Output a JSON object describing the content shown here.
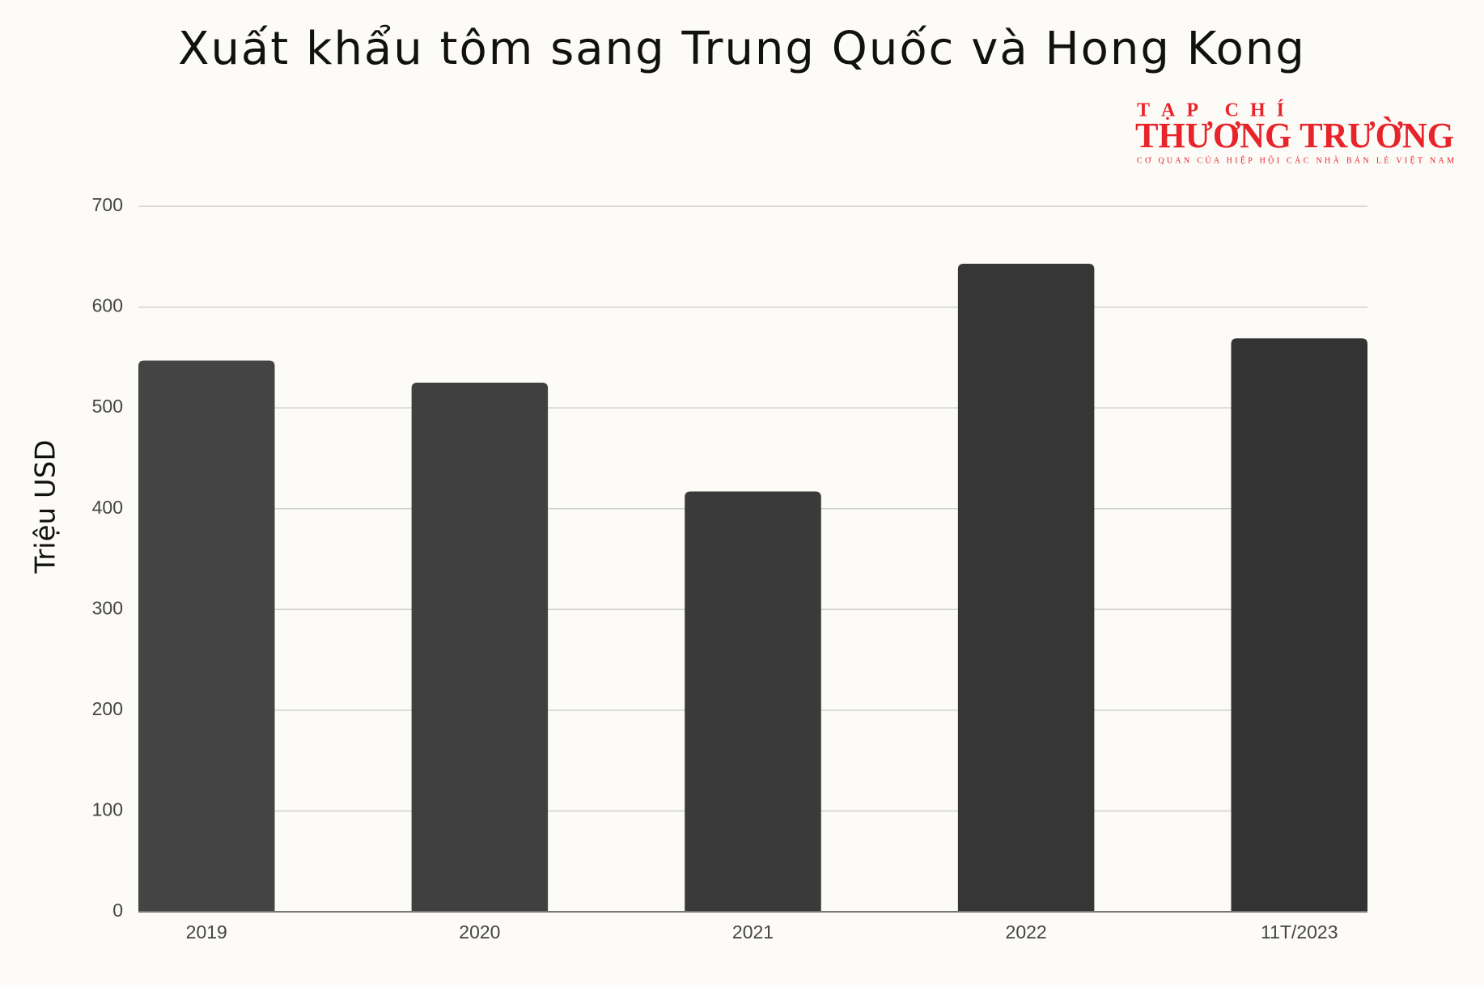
{
  "chart_data": {
    "type": "bar",
    "title": "Xuất khẩu tôm sang Trung Quốc và Hong Kong",
    "y_label": "Triệu USD",
    "categories": [
      "2019",
      "2020",
      "2021",
      "2022",
      "11T/2023"
    ],
    "values": [
      547,
      525,
      417,
      643,
      569
    ],
    "colors": [
      "#444444",
      "#404040",
      "#3a3a3a",
      "#363636",
      "#333333"
    ],
    "ylim": [
      0,
      700
    ],
    "yticks": [
      0,
      100,
      200,
      300,
      400,
      500,
      600,
      700
    ],
    "grid": true
  },
  "logo": {
    "top": "TẠP CHÍ",
    "name": "THƯƠNG TRƯỜNG",
    "tagline": "CƠ QUAN CỦA HIỆP HỘI CÁC NHÀ BÁN LẺ VIỆT NAM"
  }
}
